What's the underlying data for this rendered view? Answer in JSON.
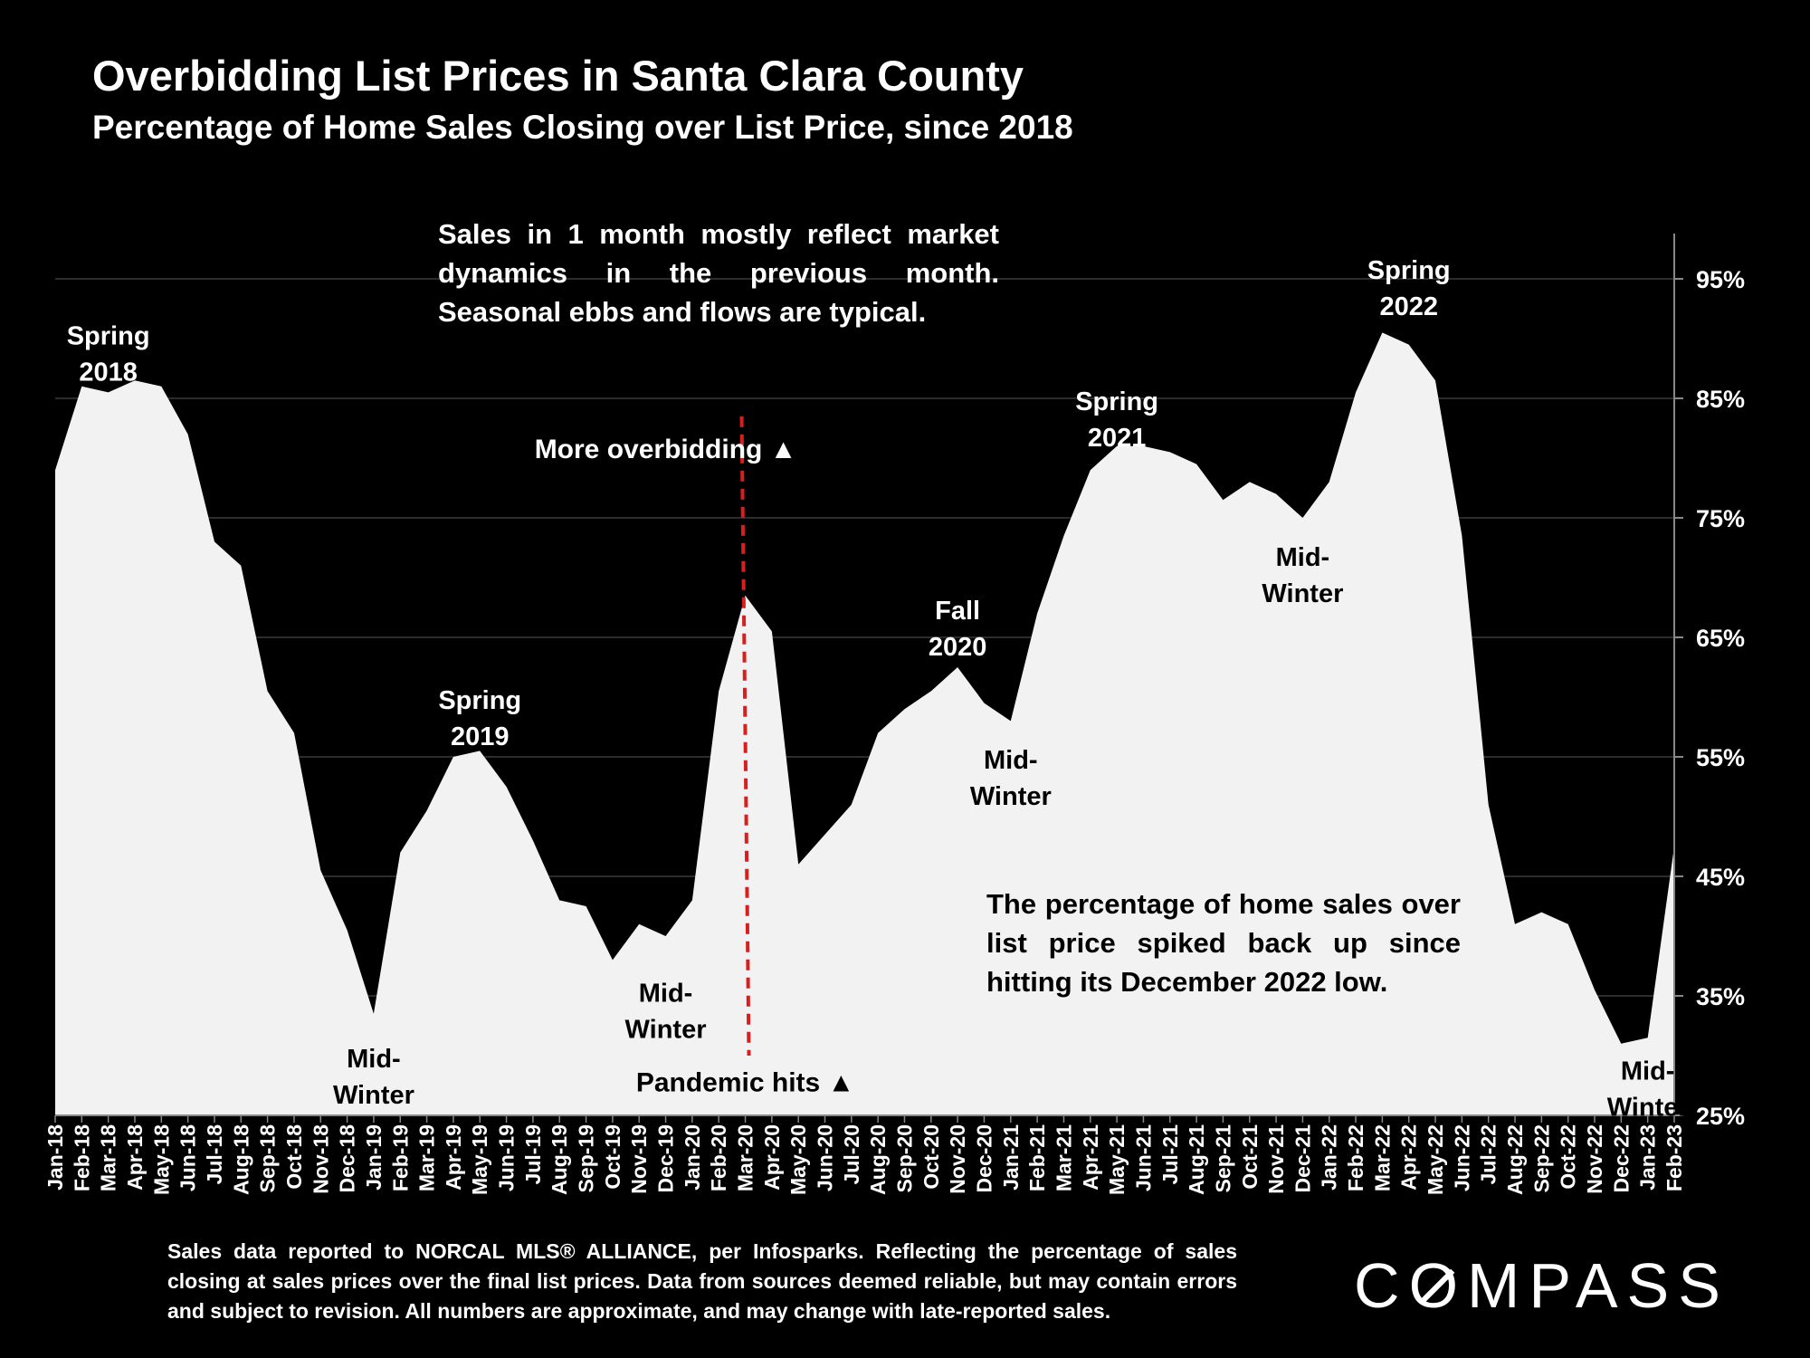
{
  "header": {
    "title": "Overbidding List Prices in Santa Clara County",
    "subtitle": "Percentage of Home Sales Closing over List Price, since 2018"
  },
  "notes": {
    "top": "Sales in 1 month mostly reflect market dynamics in the previous month. Seasonal ebbs and flows are typical.",
    "bottom": "The percentage of home sales over list price spiked back up since hitting its December 2022 low."
  },
  "footer": {
    "text": "Sales data reported to NORCAL MLS® ALLIANCE, per Infosparks. Reflecting the percentage of sales closing at sales prices over the final list prices. Data from sources deemed reliable, but may contain errors and subject to revision. All numbers are approximate, and may change with late-reported sales."
  },
  "logo": {
    "text": "COMPASS"
  },
  "colors": {
    "background": "#000000",
    "area": "#f2f2f2",
    "grid": "#3a3a3a",
    "pandemic_line": "#d42020"
  },
  "chart_data": {
    "type": "area",
    "title": "Overbidding List Prices in Santa Clara County",
    "subtitle": "Percentage of Home Sales Closing over List Price, since 2018",
    "x": [
      "Jan-18",
      "Feb-18",
      "Mar-18",
      "Apr-18",
      "May-18",
      "Jun-18",
      "Jul-18",
      "Aug-18",
      "Sep-18",
      "Oct-18",
      "Nov-18",
      "Dec-18",
      "Jan-19",
      "Feb-19",
      "Mar-19",
      "Apr-19",
      "May-19",
      "Jun-19",
      "Jul-19",
      "Aug-19",
      "Sep-19",
      "Oct-19",
      "Nov-19",
      "Dec-19",
      "Jan-20",
      "Feb-20",
      "Mar-20",
      "Apr-20",
      "May-20",
      "Jun-20",
      "Jul-20",
      "Aug-20",
      "Sep-20",
      "Oct-20",
      "Nov-20",
      "Dec-20",
      "Jan-21",
      "Feb-21",
      "Mar-21",
      "Apr-21",
      "May-21",
      "Jun-21",
      "Jul-21",
      "Aug-21",
      "Sep-21",
      "Oct-21",
      "Nov-21",
      "Dec-21",
      "Jan-22",
      "Feb-22",
      "Mar-22",
      "Apr-22",
      "May-22",
      "Jun-22",
      "Jul-22",
      "Aug-22",
      "Sep-22",
      "Oct-22",
      "Nov-22",
      "Dec-22",
      "Jan-23",
      "Feb-23"
    ],
    "series": [
      {
        "values": [
          79,
          86,
          85.5,
          86.5,
          86,
          82,
          73,
          71,
          60.5,
          57,
          45.5,
          40.5,
          33.5,
          47,
          50.5,
          55,
          55.5,
          52.5,
          48,
          43,
          42.5,
          38,
          41,
          40,
          43,
          60.5,
          68.5,
          65.5,
          46,
          48.5,
          51,
          57,
          59,
          60.5,
          62.5,
          59.5,
          58,
          67,
          73.5,
          79,
          81,
          81,
          80.5,
          79.5,
          76.5,
          78,
          77,
          75,
          78,
          85.5,
          90.5,
          89.5,
          86.5,
          73.5,
          51,
          41,
          42,
          41,
          35.5,
          31,
          31.5,
          47.5
        ]
      }
    ],
    "y_axis": {
      "position": "right",
      "min": 25,
      "max": 95,
      "ticks": [
        25,
        35,
        45,
        55,
        65,
        75,
        85,
        95
      ],
      "tick_labels": [
        "25%",
        "35%",
        "45%",
        "55%",
        "65%",
        "75%",
        "85%",
        "95%"
      ]
    },
    "grid": true,
    "annotations": [
      {
        "text": [
          "Spring",
          "2018"
        ],
        "x": "Mar-18",
        "y": 89.5,
        "color": "light"
      },
      {
        "text": [
          "Mid-",
          "Winter"
        ],
        "x": "Jan-19",
        "y": 29,
        "color": "dark"
      },
      {
        "text": [
          "Spring",
          "2019"
        ],
        "x": "May-19",
        "y": 59,
        "color": "light"
      },
      {
        "text": [
          "Mid-",
          "Winter"
        ],
        "x": "Dec-19",
        "y": 34.5,
        "color": "dark"
      },
      {
        "text": [
          "Fall",
          "2020"
        ],
        "x": "Nov-20",
        "y": 66.5,
        "color": "light"
      },
      {
        "text": [
          "Mid-",
          "Winter"
        ],
        "x": "Jan-21",
        "y": 54,
        "color": "dark"
      },
      {
        "text": [
          "Spring",
          "2021"
        ],
        "x": "May-21",
        "y": 84,
        "color": "light"
      },
      {
        "text": [
          "Mid-",
          "Winter"
        ],
        "x": "Dec-21",
        "y": 71,
        "color": "dark"
      },
      {
        "text": [
          "Spring",
          "2022"
        ],
        "x": "Apr-22",
        "y": 95,
        "color": "light"
      },
      {
        "text": [
          "Mid-",
          "Winter"
        ],
        "x": "Jan-23",
        "y": 28,
        "color": "dark"
      }
    ],
    "markers": [
      {
        "text": "More overbidding ▲",
        "x": "Dec-19",
        "y": 80,
        "color": "light"
      },
      {
        "text": "Pandemic hits ▲",
        "x": "Mar-20",
        "y": 27,
        "color": "dark"
      }
    ],
    "vertical_line": {
      "x": "Mar-20",
      "y_from": 30,
      "y_to": 83.5,
      "style": "dashed"
    }
  }
}
